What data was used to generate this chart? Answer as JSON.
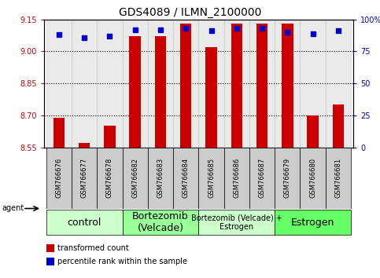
{
  "title": "GDS4089 / ILMN_2100000",
  "samples": [
    "GSM766676",
    "GSM766677",
    "GSM766678",
    "GSM766682",
    "GSM766683",
    "GSM766684",
    "GSM766685",
    "GSM766686",
    "GSM766687",
    "GSM766679",
    "GSM766680",
    "GSM766681"
  ],
  "transformed_count": [
    8.69,
    8.57,
    8.65,
    9.07,
    9.07,
    9.13,
    9.02,
    9.13,
    9.13,
    9.13,
    8.7,
    8.75
  ],
  "percentile_rank": [
    88,
    86,
    87,
    92,
    92,
    93,
    91,
    93,
    93,
    90,
    89,
    91
  ],
  "ylim": [
    8.55,
    9.15
  ],
  "yticks": [
    8.55,
    8.7,
    8.85,
    9.0,
    9.15
  ],
  "y2lim": [
    0,
    100
  ],
  "y2ticks": [
    0,
    25,
    50,
    75,
    100
  ],
  "bar_color": "#cc0000",
  "dot_color": "#0000cc",
  "bar_bottom": 8.55,
  "group_labels": [
    "control",
    "Bortezomib\n(Velcade)",
    "Bortezomib (Velcade) +\nEstrogen",
    "Estrogen"
  ],
  "group_starts": [
    0,
    3,
    6,
    9
  ],
  "group_ends": [
    2,
    5,
    8,
    11
  ],
  "group_colors": [
    "#ccffcc",
    "#99ff99",
    "#ccffcc",
    "#66ff66"
  ],
  "group_label_fontsizes": [
    9,
    9,
    7,
    9
  ],
  "legend_red": "transformed count",
  "legend_blue": "percentile rank within the sample",
  "agent_label": "agent",
  "ylabel_color": "#cc0000",
  "y2label_color": "#0000cc",
  "ytick_fontsize": 7,
  "xtick_fontsize": 6,
  "title_fontsize": 10,
  "legend_fontsize": 7,
  "sample_bg_color": "#cccccc",
  "grid_dotted_at": [
    8.7,
    8.85,
    9.0
  ]
}
